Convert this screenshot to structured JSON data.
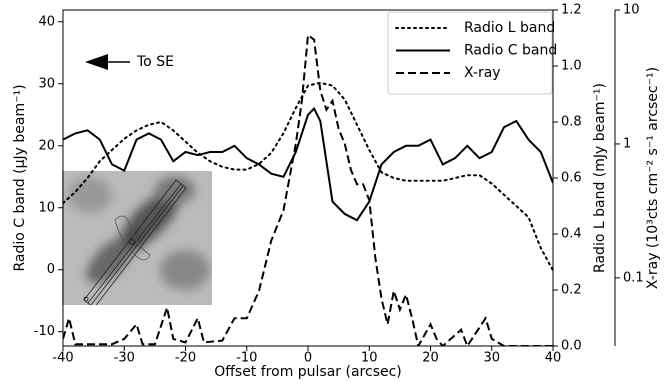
{
  "chart_data": {
    "type": "line",
    "xlabel": "Offset from pulsar (arcsec)",
    "ylabel": "Radio C band (μJy beam⁻¹)",
    "y2label": "Radio L band (mJy beam⁻¹)",
    "y3label": "X-ray (10³cts cm⁻² s⁻¹ arcsec⁻¹)",
    "annotation": "To SE",
    "xlim": [
      -40,
      40
    ],
    "xticks": [
      -40,
      -30,
      -20,
      -10,
      0,
      10,
      20,
      30,
      40
    ],
    "ylim": [
      -12.3,
      41.9
    ],
    "yticks": [
      -10,
      0,
      10,
      20,
      30,
      40
    ],
    "y2lim": [
      0,
      1.2
    ],
    "y2ticks": [
      {
        "value": 0,
        "label": "0.0"
      },
      0.2,
      0.4,
      0.6,
      0.8,
      {
        "value": 1,
        "label": "1.0"
      },
      1.2
    ],
    "y3lim": [
      0.031,
      10
    ],
    "y3ticks": [
      0.1,
      1,
      10
    ],
    "y3log": true,
    "legend": "upper right",
    "series": [
      {
        "name": "Radio L band",
        "color": "#000000",
        "dash": "dotted",
        "axis": "y2",
        "x": [
          -40,
          -38,
          -36,
          -34,
          -32,
          -30,
          -28,
          -26,
          -24,
          -22,
          -20,
          -18,
          -16,
          -14,
          -12,
          -10,
          -8,
          -6,
          -4,
          -2,
          0,
          2,
          4,
          6,
          8,
          10,
          12,
          14,
          16,
          18,
          20,
          22,
          24,
          26,
          28,
          30,
          32,
          34,
          36,
          38,
          40
        ],
        "values": [
          0.51,
          0.55,
          0.6,
          0.66,
          0.7,
          0.74,
          0.77,
          0.79,
          0.8,
          0.77,
          0.73,
          0.69,
          0.66,
          0.64,
          0.63,
          0.63,
          0.65,
          0.69,
          0.76,
          0.85,
          0.93,
          0.94,
          0.93,
          0.88,
          0.79,
          0.7,
          0.62,
          0.6,
          0.59,
          0.59,
          0.59,
          0.59,
          0.6,
          0.61,
          0.61,
          0.58,
          0.54,
          0.5,
          0.46,
          0.35,
          0.27
        ]
      },
      {
        "name": "Radio C band",
        "color": "#000000",
        "dash": "solid",
        "axis": "y",
        "x": [
          -40,
          -38,
          -36,
          -34,
          -32,
          -30,
          -28,
          -26,
          -24,
          -22,
          -20,
          -18,
          -16,
          -14,
          -12,
          -10,
          -8,
          -6,
          -4,
          -2,
          0,
          1,
          2,
          4,
          6,
          8,
          10,
          12,
          14,
          16,
          18,
          20,
          22,
          24,
          26,
          28,
          30,
          32,
          34,
          36,
          38,
          40
        ],
        "values": [
          21,
          22,
          22.5,
          21,
          17,
          16,
          21,
          22,
          21,
          17.5,
          19,
          18.5,
          19,
          19,
          20,
          18,
          17,
          15.5,
          15,
          19,
          25,
          26,
          24,
          11,
          9,
          8,
          11,
          17,
          19,
          20,
          20,
          21,
          17,
          18,
          20,
          18,
          19,
          23,
          24,
          21,
          19,
          14
        ]
      },
      {
        "name": "X-ray",
        "color": "#000000",
        "dash": "dashed",
        "axis": "y3",
        "x": [
          -40,
          -39,
          -38,
          -36,
          -34,
          -32,
          -30,
          -28,
          -27,
          -25,
          -23,
          -22,
          -20,
          -18,
          -17,
          -14,
          -12,
          -10,
          -8,
          -6,
          -4,
          -2,
          -1,
          0,
          1,
          2,
          3,
          4,
          5,
          6,
          7,
          8,
          9,
          10,
          11,
          12,
          13,
          14,
          15,
          16,
          17,
          18,
          20,
          21,
          22,
          25,
          26,
          29,
          30,
          32,
          40
        ],
        "values": [
          0.035,
          0.05,
          0.032,
          0.032,
          0.032,
          0.032,
          0.035,
          0.045,
          0.032,
          0.032,
          0.06,
          0.035,
          0.033,
          0.05,
          0.033,
          0.034,
          0.05,
          0.05,
          0.08,
          0.19,
          0.32,
          1.0,
          2.1,
          6.5,
          6.0,
          2.5,
          1.8,
          2.1,
          1.3,
          1.0,
          0.64,
          0.5,
          0.5,
          0.38,
          0.14,
          0.07,
          0.045,
          0.08,
          0.058,
          0.075,
          0.05,
          0.031,
          0.045,
          0.035,
          0.031,
          0.041,
          0.031,
          0.05,
          0.035,
          0.031,
          0.031
        ]
      }
    ]
  }
}
